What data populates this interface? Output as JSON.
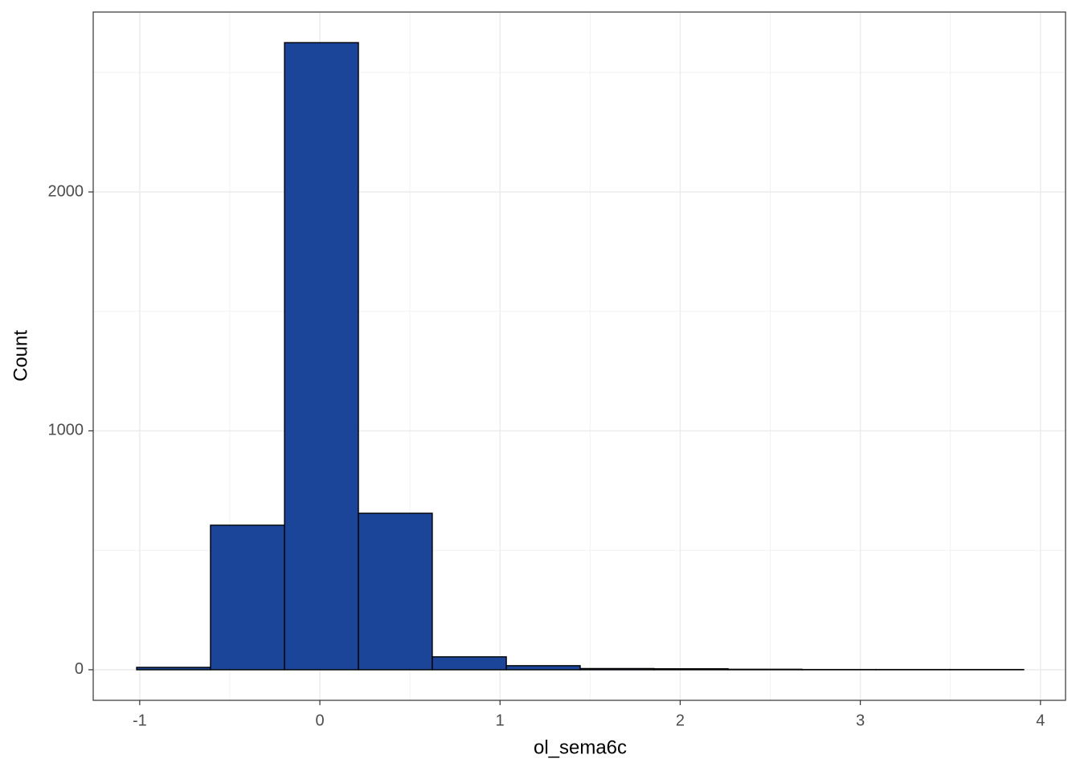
{
  "chart_data": {
    "type": "histogram",
    "x_label": "ol_sema6c",
    "y_label": "Count",
    "bins": [
      -1.017,
      -0.607,
      -0.196,
      0.214,
      0.624,
      1.035,
      1.445,
      1.855,
      2.266,
      2.676,
      3.086,
      3.497,
      3.907
    ],
    "values": [
      10,
      605,
      2625,
      655,
      54,
      17,
      5,
      4,
      2,
      1,
      1,
      1
    ],
    "color": "#1a4599",
    "edge_color": "#000000",
    "xlim": [
      -1.258,
      4.139
    ],
    "xticks": [
      -1,
      0,
      1,
      2,
      3,
      4
    ],
    "ylim": [
      -128,
      2753
    ],
    "yticks": [
      0,
      1000,
      2000
    ],
    "grid": true
  }
}
